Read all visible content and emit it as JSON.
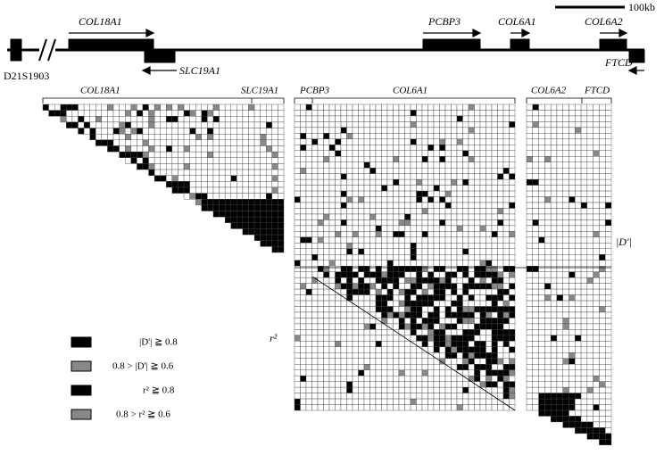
{
  "scale_bar": "100kb",
  "map": {
    "marker": "D21S1903",
    "genes": [
      "COL18A1",
      "SLC19A1",
      "PCBP3",
      "COL6A1",
      "COL6A2",
      "FTCD"
    ]
  },
  "panels": {
    "left": [
      "COL18A1",
      "SLC19A1"
    ],
    "middle": [
      "PCBP3",
      "COL6A1"
    ],
    "right": [
      "COL6A2",
      "FTCD"
    ]
  },
  "axis_labels": {
    "d_prime": "|D'|",
    "r2": "r²"
  },
  "legend": [
    "|D'| ≧ 0.8",
    "0.8 > |D'| ≧ 0.6",
    "r² ≧ 0.8",
    "0.8 > r² ≧ 0.6"
  ]
}
